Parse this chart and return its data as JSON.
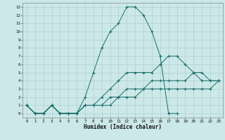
{
  "title": "",
  "xlabel": "Humidex (Indice chaleur)",
  "bg_color": "#cce8e8",
  "line_color": "#1a6e6a",
  "grid_color": "#aacaca",
  "xlim": [
    -0.5,
    23.5
  ],
  "ylim": [
    -0.5,
    13.5
  ],
  "xticks": [
    0,
    1,
    2,
    3,
    4,
    5,
    6,
    7,
    8,
    9,
    10,
    11,
    12,
    13,
    14,
    15,
    16,
    17,
    18,
    19,
    20,
    21,
    22,
    23
  ],
  "yticks": [
    0,
    1,
    2,
    3,
    4,
    5,
    6,
    7,
    8,
    9,
    10,
    11,
    12,
    13
  ],
  "lines": [
    {
      "x": [
        0,
        1,
        2,
        3,
        4,
        5,
        6,
        7,
        8,
        9,
        10,
        11,
        12,
        13,
        14,
        15,
        16,
        17,
        18
      ],
      "y": [
        1,
        0,
        0,
        1,
        0,
        0,
        0,
        2,
        5,
        8,
        10,
        11,
        13,
        13,
        12,
        10,
        7,
        0,
        0
      ]
    },
    {
      "x": [
        0,
        1,
        2,
        3,
        4,
        5,
        6,
        7,
        8,
        9,
        10,
        11,
        12,
        13,
        14,
        15,
        16,
        17,
        18,
        19,
        20,
        21,
        22,
        23
      ],
      "y": [
        1,
        0,
        0,
        1,
        0,
        0,
        0,
        1,
        1,
        2,
        3,
        4,
        5,
        5,
        5,
        5,
        6,
        7,
        7,
        6,
        5,
        5,
        4,
        4
      ]
    },
    {
      "x": [
        0,
        1,
        2,
        3,
        4,
        5,
        6,
        7,
        8,
        9,
        10,
        11,
        12,
        13,
        14,
        15,
        16,
        17,
        18,
        19,
        20,
        21,
        22,
        23
      ],
      "y": [
        1,
        0,
        0,
        1,
        0,
        0,
        0,
        1,
        1,
        1,
        2,
        2,
        3,
        3,
        3,
        4,
        4,
        4,
        4,
        4,
        5,
        4,
        4,
        4
      ]
    },
    {
      "x": [
        0,
        1,
        2,
        3,
        4,
        5,
        6,
        7,
        8,
        9,
        10,
        11,
        12,
        13,
        14,
        15,
        16,
        17,
        18,
        19,
        20,
        21,
        22,
        23
      ],
      "y": [
        1,
        0,
        0,
        1,
        0,
        0,
        0,
        1,
        1,
        1,
        1,
        2,
        2,
        2,
        3,
        3,
        3,
        3,
        3,
        3,
        3,
        3,
        3,
        4
      ]
    }
  ]
}
